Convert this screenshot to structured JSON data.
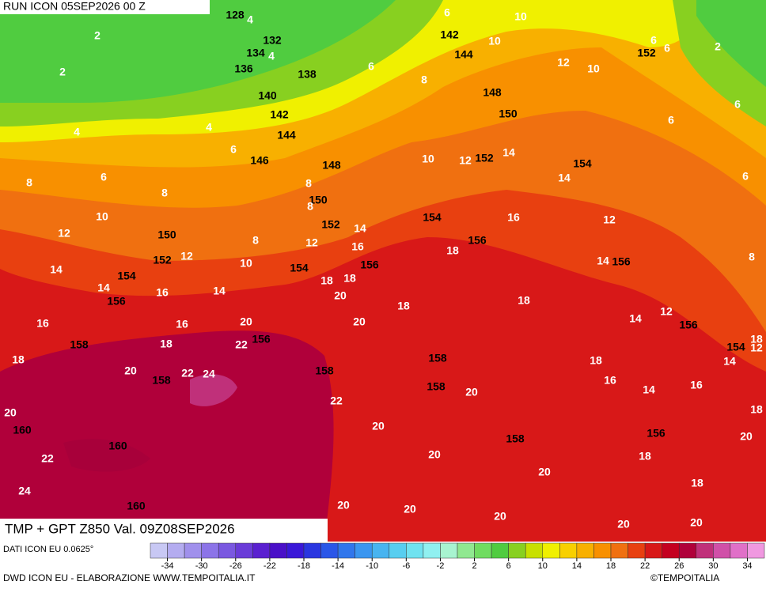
{
  "header": {
    "run": "RUN ICON 05SEP2026 00 Z",
    "product": "TMP + GPT Z850 Val. 09Z08SEP2026",
    "source": "DATI ICON EU 0.0625°",
    "credit": "DWD ICON EU - ELABORAZIONE WWW.TEMPOITALIA.IT",
    "copyright": "©TEMPOITALIA"
  },
  "isohypse_labels": [
    128,
    132,
    134,
    136,
    138,
    140,
    142,
    144,
    146,
    148,
    150,
    152,
    150,
    152,
    154,
    156,
    154,
    154,
    156,
    156,
    152,
    150,
    148,
    144,
    142,
    152,
    154,
    156,
    156,
    154,
    156,
    158,
    158,
    160,
    160,
    160,
    158,
    158,
    158,
    158,
    156
  ],
  "temperature_labels": [
    4,
    2,
    2,
    4,
    6,
    10,
    10,
    12,
    10,
    6,
    2,
    6,
    6,
    6,
    6,
    8,
    4,
    4,
    6,
    6,
    8,
    8,
    10,
    12,
    10,
    12,
    14,
    14,
    6,
    8,
    8,
    8,
    12,
    14,
    16,
    10,
    12,
    14,
    14,
    16,
    14,
    16,
    16,
    18,
    20,
    22,
    18,
    20,
    22,
    24,
    18,
    18,
    20,
    18,
    20,
    18,
    16,
    12,
    14,
    8,
    18,
    14,
    12,
    18,
    14,
    12,
    18,
    16,
    14,
    16,
    18,
    20,
    18,
    18,
    20,
    20,
    20,
    20,
    20,
    20,
    20,
    20,
    20,
    22,
    20,
    22,
    24
  ],
  "colorbar": {
    "ticks": [
      -34,
      -30,
      -26,
      -22,
      -18,
      -14,
      -10,
      -6,
      -2,
      2,
      6,
      10,
      14,
      18,
      22,
      26,
      30,
      34
    ],
    "colors": [
      "#c8c8f4",
      "#b4acf0",
      "#a090ec",
      "#8c74e8",
      "#7a58e0",
      "#6a3cd8",
      "#5a20d0",
      "#4a10c8",
      "#3a18d8",
      "#2a36e0",
      "#2a56e8",
      "#3076ec",
      "#3a96f0",
      "#48b4f0",
      "#58cef0",
      "#70e2f0",
      "#90f0f0",
      "#a8f4d0",
      "#90e890",
      "#70dc60",
      "#50cc40",
      "#88d020",
      "#c8e000",
      "#f0f000",
      "#f8d000",
      "#f8b000",
      "#f89000",
      "#f07010",
      "#e84010",
      "#d81818",
      "#c40020",
      "#b0003a",
      "#c0307a",
      "#d050a8",
      "#e070c8",
      "#f098e0"
    ]
  }
}
